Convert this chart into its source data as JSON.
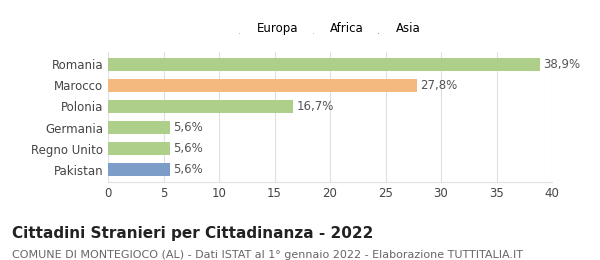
{
  "categories": [
    "Romania",
    "Marocco",
    "Polonia",
    "Germania",
    "Regno Unito",
    "Pakistan"
  ],
  "values": [
    38.9,
    27.8,
    16.7,
    5.6,
    5.6,
    5.6
  ],
  "labels": [
    "38,9%",
    "27,8%",
    "16,7%",
    "5,6%",
    "5,6%",
    "5,6%"
  ],
  "bar_colors": [
    "#aecf8a",
    "#f4b97f",
    "#aecf8a",
    "#aecf8a",
    "#aecf8a",
    "#7b9dc8"
  ],
  "legend": [
    {
      "label": "Europa",
      "color": "#aecf8a"
    },
    {
      "label": "Africa",
      "color": "#f4b97f"
    },
    {
      "label": "Asia",
      "color": "#7b9dc8"
    }
  ],
  "xlim": [
    0,
    40
  ],
  "xticks": [
    0,
    5,
    10,
    15,
    20,
    25,
    30,
    35,
    40
  ],
  "title": "Cittadini Stranieri per Cittadinanza - 2022",
  "subtitle": "COMUNE DI MONTEGIOCO (AL) - Dati ISTAT al 1° gennaio 2022 - Elaborazione TUTTITALIA.IT",
  "title_fontsize": 11,
  "subtitle_fontsize": 8,
  "background_color": "#ffffff",
  "grid_color": "#e0e0e0",
  "label_fontsize": 8.5,
  "tick_fontsize": 8.5
}
